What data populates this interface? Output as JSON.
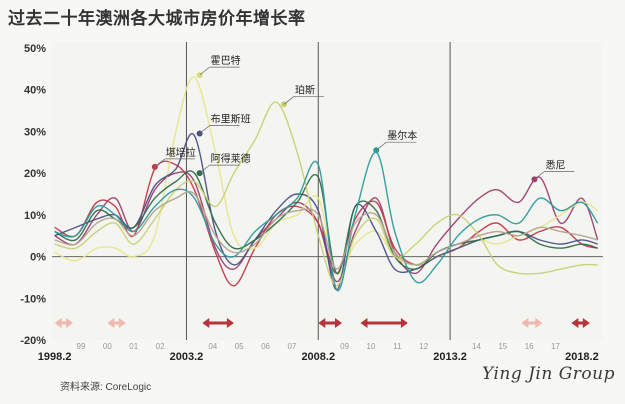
{
  "title": "过去二十年澳洲各大城市房价年增长率",
  "source": "资料来源: CoreLogic",
  "watermark": "Ying Jin Group",
  "chart_data": {
    "type": "line",
    "title": "过去二十年澳洲各大城市房价年增长率",
    "xlabel": "",
    "ylabel": "",
    "ylim": [
      -20,
      50
    ],
    "xlim": [
      1998.1,
      2019.0
    ],
    "y_ticks": [
      {
        "v": 50,
        "label": "50%"
      },
      {
        "v": 40,
        "label": "40%"
      },
      {
        "v": 30,
        "label": "30%"
      },
      {
        "v": 20,
        "label": "20%"
      },
      {
        "v": 10,
        "label": "10%"
      },
      {
        "v": 0,
        "label": "0%"
      },
      {
        "v": -10,
        "label": "-10%"
      },
      {
        "v": -20,
        "label": "-20%"
      }
    ],
    "x_major_ticks": [
      {
        "v": 1998.2,
        "label": "1998.2"
      },
      {
        "v": 2003.2,
        "label": "2003.2"
      },
      {
        "v": 2008.2,
        "label": "2008.2"
      },
      {
        "v": 2013.2,
        "label": "2013.2"
      },
      {
        "v": 2018.2,
        "label": "2018.2"
      }
    ],
    "x_minor_ticks": [
      {
        "v": 1999.2,
        "label": "99"
      },
      {
        "v": 2000.2,
        "label": "00"
      },
      {
        "v": 2001.2,
        "label": "01"
      },
      {
        "v": 2002.2,
        "label": "02"
      },
      {
        "v": 2004.2,
        "label": "04"
      },
      {
        "v": 2005.2,
        "label": "05"
      },
      {
        "v": 2006.2,
        "label": "06"
      },
      {
        "v": 2007.2,
        "label": "07"
      },
      {
        "v": 2009.2,
        "label": "09"
      },
      {
        "v": 2010.2,
        "label": "10"
      },
      {
        "v": 2011.2,
        "label": "11"
      },
      {
        "v": 2012.2,
        "label": "12"
      },
      {
        "v": 2014.2,
        "label": "14"
      },
      {
        "v": 2015.2,
        "label": "15"
      },
      {
        "v": 2016.2,
        "label": "16"
      },
      {
        "v": 2017.2,
        "label": "17"
      }
    ],
    "grid": false,
    "vertical_dividers": [
      2003.2,
      2008.2,
      2013.2
    ],
    "rate_change_arrows": [
      {
        "x0": 1998.2,
        "x1": 1998.9,
        "color": "#f0b9ad"
      },
      {
        "x0": 2000.2,
        "x1": 2000.9,
        "color": "#f0b9ad"
      },
      {
        "x0": 2003.8,
        "x1": 2005.0,
        "color": "#b8323c"
      },
      {
        "x0": 2008.2,
        "x1": 2009.1,
        "color": "#b8323c"
      },
      {
        "x0": 2009.8,
        "x1": 2011.6,
        "color": "#b8323c"
      },
      {
        "x0": 2015.9,
        "x1": 2016.7,
        "color": "#f0b9ad"
      },
      {
        "x0": 2017.8,
        "x1": 2018.5,
        "color": "#b8323c"
      }
    ],
    "annotations": [
      {
        "label": "悉尼",
        "x": 2016.4,
        "y": 18.5,
        "color": "#9d3f73"
      },
      {
        "label": "堪培拉",
        "x": 2002.0,
        "y": 21.5,
        "color": "#c4364a"
      },
      {
        "label": "霍巴特",
        "x": 2003.7,
        "y": 43.5,
        "color": "#dfe07a"
      },
      {
        "label": "布里斯班",
        "x": 2003.7,
        "y": 29.5,
        "color": "#4a4f86"
      },
      {
        "label": "阿得莱德",
        "x": 2003.7,
        "y": 20,
        "color": "#2f6d4c"
      },
      {
        "label": "珀斯",
        "x": 2006.9,
        "y": 36.5,
        "color": "#c7d171"
      },
      {
        "label": "墨尔本",
        "x": 2010.4,
        "y": 25.5,
        "color": "#2d9a9f"
      }
    ],
    "x": [
      1998.2,
      1999.0,
      1999.8,
      2000.5,
      2001.2,
      2002.0,
      2002.8,
      2003.5,
      2004.3,
      2005.0,
      2005.8,
      2006.6,
      2007.4,
      2008.2,
      2008.9,
      2009.6,
      2010.4,
      2011.1,
      2011.9,
      2012.7,
      2013.5,
      2014.3,
      2015.0,
      2015.8,
      2016.6,
      2017.4,
      2018.2,
      2018.8
    ],
    "series": [
      {
        "color": "#9d3f73",
        "values": [
          5,
          3,
          10,
          14,
          6,
          16,
          20,
          18,
          2,
          -3,
          4,
          9,
          13,
          8,
          -6,
          6,
          14,
          1,
          -4,
          3,
          9,
          14,
          16,
          13,
          19,
          8,
          14,
          4
        ]
      },
      {
        "color": "#c4364a",
        "values": [
          7,
          5,
          13,
          12,
          5,
          21,
          22,
          16,
          1,
          -7,
          2,
          10,
          12,
          8,
          -4,
          9,
          13,
          2,
          -2,
          0,
          2,
          6,
          8,
          4,
          6,
          7,
          3,
          2
        ]
      },
      {
        "color": "#e6e68a",
        "values": [
          1,
          -1,
          2,
          2,
          0,
          5,
          30,
          43,
          25,
          5,
          2,
          8,
          10,
          14,
          -4,
          3,
          6,
          0,
          -2,
          0,
          2,
          4,
          3,
          5,
          7,
          10,
          13,
          11
        ]
      },
      {
        "color": "#4a4f86",
        "values": [
          5,
          7,
          9,
          10,
          7,
          17,
          21,
          29,
          6,
          -2,
          4,
          11,
          15,
          11,
          -8,
          12,
          6,
          -3,
          -3,
          0,
          2,
          4,
          5,
          6,
          4,
          3,
          4,
          3
        ]
      },
      {
        "color": "#2f6d4c",
        "values": [
          6,
          4,
          11,
          9,
          7,
          14,
          18,
          20,
          8,
          2,
          4,
          8,
          13,
          19,
          -4,
          12,
          11,
          0,
          -3,
          1,
          3,
          4,
          5,
          6,
          3,
          2,
          3,
          2
        ]
      },
      {
        "color": "#c7d171",
        "values": [
          3,
          2,
          6,
          8,
          3,
          9,
          16,
          18,
          12,
          20,
          28,
          37,
          25,
          5,
          -7,
          5,
          9,
          0,
          3,
          8,
          10,
          5,
          -2,
          -4,
          -4,
          -3,
          -2,
          -2
        ]
      },
      {
        "color": "#2d9a9f",
        "values": [
          6,
          5,
          12,
          10,
          6,
          12,
          16,
          14,
          3,
          0,
          6,
          10,
          14,
          22,
          -8,
          10,
          25,
          6,
          -6,
          -2,
          5,
          9,
          10,
          8,
          14,
          11,
          13,
          8
        ]
      },
      {
        "color": "#b3a48c",
        "values": [
          4,
          3,
          8,
          9,
          5,
          11,
          14,
          15,
          5,
          1,
          3,
          9,
          11,
          10,
          -3,
          8,
          10,
          1,
          -2,
          1,
          3,
          5,
          6,
          5,
          7,
          6,
          5,
          4
        ]
      }
    ]
  }
}
